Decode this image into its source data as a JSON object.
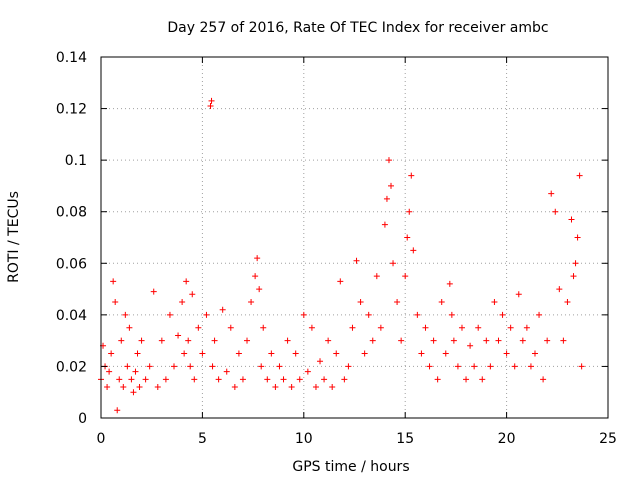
{
  "chart_data": {
    "type": "scatter",
    "title": "Day 257 of 2016, Rate Of TEC Index for receiver ambc",
    "xlabel": "GPS time / hours",
    "ylabel": "ROTI / TECUs",
    "xlim": [
      0,
      25
    ],
    "ylim": [
      0,
      0.14
    ],
    "xticks": [
      0,
      5,
      10,
      15,
      20,
      25
    ],
    "yticks": [
      0,
      0.02,
      0.04,
      0.06,
      0.08,
      0.1,
      0.12,
      0.14
    ],
    "xtick_labels": [
      "0",
      "5",
      "10",
      "15",
      "20",
      "25"
    ],
    "ytick_labels": [
      "0",
      "0.02",
      "0.04",
      "0.06",
      "0.08",
      "0.1",
      "0.12",
      "0.14"
    ],
    "grid": true,
    "marker": "plus",
    "color": "#ff0000",
    "series": [
      {
        "name": "ROTI",
        "x": [
          0.0,
          0.1,
          0.2,
          0.3,
          0.4,
          0.5,
          0.6,
          0.7,
          0.8,
          0.9,
          1.0,
          1.1,
          1.2,
          1.3,
          1.4,
          1.5,
          1.6,
          1.7,
          1.8,
          1.9,
          2.0,
          2.2,
          2.4,
          2.6,
          2.8,
          3.0,
          3.2,
          3.4,
          3.6,
          3.8,
          4.0,
          4.1,
          4.2,
          4.3,
          4.4,
          4.5,
          4.6,
          4.8,
          5.0,
          5.2,
          5.4,
          5.45,
          5.5,
          5.6,
          5.8,
          6.0,
          6.2,
          6.4,
          6.6,
          6.8,
          7.0,
          7.2,
          7.4,
          7.6,
          7.7,
          7.8,
          7.9,
          8.0,
          8.2,
          8.4,
          8.6,
          8.8,
          9.0,
          9.2,
          9.4,
          9.6,
          9.8,
          10.0,
          10.2,
          10.4,
          10.6,
          10.8,
          11.0,
          11.2,
          11.4,
          11.6,
          11.8,
          12.0,
          12.2,
          12.4,
          12.6,
          12.8,
          13.0,
          13.2,
          13.4,
          13.6,
          13.8,
          14.0,
          14.1,
          14.2,
          14.3,
          14.4,
          14.6,
          14.8,
          15.0,
          15.1,
          15.2,
          15.3,
          15.4,
          15.6,
          15.8,
          16.0,
          16.2,
          16.4,
          16.6,
          16.8,
          17.0,
          17.2,
          17.3,
          17.4,
          17.6,
          17.8,
          18.0,
          18.2,
          18.4,
          18.6,
          18.8,
          19.0,
          19.2,
          19.4,
          19.6,
          19.8,
          20.0,
          20.2,
          20.4,
          20.6,
          20.8,
          21.0,
          21.2,
          21.4,
          21.6,
          21.8,
          22.0,
          22.2,
          22.4,
          22.6,
          22.8,
          23.0,
          23.2,
          23.3,
          23.4,
          23.5,
          23.6,
          23.7
        ],
        "y": [
          0.015,
          0.028,
          0.02,
          0.012,
          0.018,
          0.025,
          0.053,
          0.045,
          0.003,
          0.015,
          0.03,
          0.012,
          0.04,
          0.02,
          0.035,
          0.015,
          0.01,
          0.018,
          0.025,
          0.012,
          0.03,
          0.015,
          0.02,
          0.049,
          0.012,
          0.03,
          0.015,
          0.04,
          0.02,
          0.032,
          0.045,
          0.025,
          0.053,
          0.03,
          0.02,
          0.048,
          0.015,
          0.035,
          0.025,
          0.04,
          0.121,
          0.123,
          0.02,
          0.03,
          0.015,
          0.042,
          0.018,
          0.035,
          0.012,
          0.025,
          0.015,
          0.03,
          0.045,
          0.055,
          0.062,
          0.05,
          0.02,
          0.035,
          0.015,
          0.025,
          0.012,
          0.02,
          0.015,
          0.03,
          0.012,
          0.025,
          0.015,
          0.04,
          0.018,
          0.035,
          0.012,
          0.022,
          0.015,
          0.03,
          0.012,
          0.025,
          0.053,
          0.015,
          0.02,
          0.035,
          0.061,
          0.045,
          0.025,
          0.04,
          0.03,
          0.055,
          0.035,
          0.075,
          0.085,
          0.1,
          0.09,
          0.06,
          0.045,
          0.03,
          0.055,
          0.07,
          0.08,
          0.094,
          0.065,
          0.04,
          0.025,
          0.035,
          0.02,
          0.03,
          0.015,
          0.045,
          0.025,
          0.052,
          0.04,
          0.03,
          0.02,
          0.035,
          0.015,
          0.028,
          0.02,
          0.035,
          0.015,
          0.03,
          0.02,
          0.045,
          0.03,
          0.04,
          0.025,
          0.035,
          0.02,
          0.048,
          0.03,
          0.035,
          0.02,
          0.025,
          0.04,
          0.015,
          0.03,
          0.087,
          0.08,
          0.05,
          0.03,
          0.045,
          0.077,
          0.055,
          0.06,
          0.07,
          0.094,
          0.02
        ]
      }
    ]
  }
}
